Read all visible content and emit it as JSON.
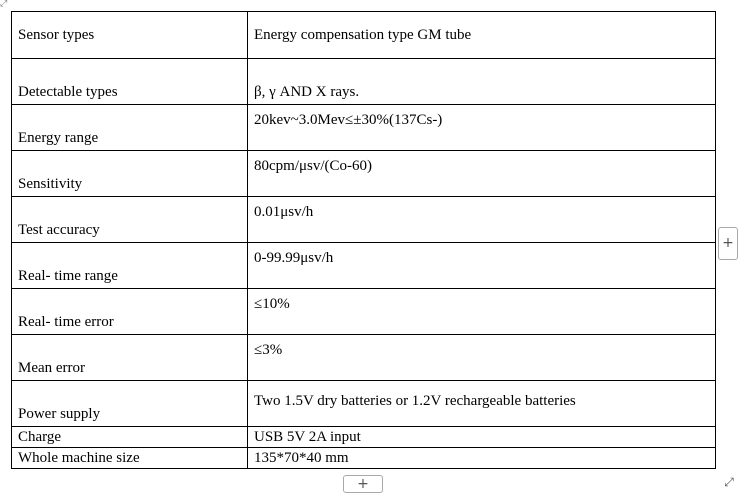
{
  "corner_marker": "⤢",
  "spec_table": {
    "rows": [
      {
        "label": "Sensor types",
        "value": "Energy compensation type GM tube"
      },
      {
        "label": "Detectable types",
        "value": "β, γ AND X rays."
      },
      {
        "label": "Energy range",
        "value": "20kev~3.0Mev≤±30%(137Cs-)"
      },
      {
        "label": "Sensitivity",
        "value": "80cpm/μsv/(Co-60)"
      },
      {
        "label": "Test accuracy",
        "value": "0.01μsv/h"
      },
      {
        "label": "Real- time range",
        "value": "0-99.99μsv/h"
      },
      {
        "label": "Real- time error",
        "value": "≤10%"
      },
      {
        "label": "Mean error",
        "value": "≤3%"
      },
      {
        "label": "Power supply",
        "value": "Two 1.5V dry batteries or 1.2V rechargeable batteries"
      },
      {
        "label": "Charge",
        "value": "USB 5V 2A input"
      },
      {
        "label": "Whole machine size",
        "value": "135*70*40 mm"
      }
    ]
  },
  "controls": {
    "add_column": "+",
    "add_row": "+",
    "resize": "⤢"
  }
}
